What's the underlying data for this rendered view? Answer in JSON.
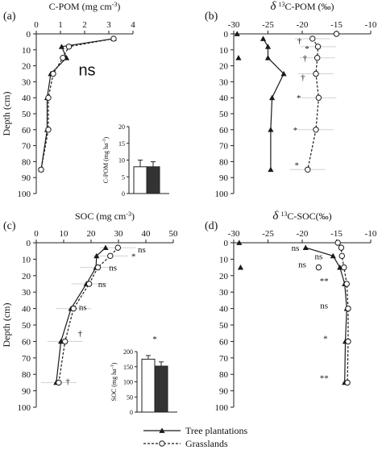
{
  "figure": {
    "legend": {
      "tree_label": "Tree plantations",
      "grass_label": "Grasslands",
      "position": "bottom-center"
    },
    "colors": {
      "tree": "#1a1a1a",
      "grass": "#1a1a1a",
      "inset_tree": "#ffffff",
      "inset_grass": "#333333",
      "errorbar": "#cccccc"
    }
  },
  "chart_data": [
    {
      "id": "a",
      "type": "line",
      "panel_label": "(a)",
      "title": "C-POM (mg cm",
      "title_sup": "-3",
      "title_end": ")",
      "ylabel": "Depth (cm)",
      "xlim": [
        0,
        4
      ],
      "xticks": [
        0,
        1,
        2,
        3,
        4
      ],
      "ylim": [
        0,
        100
      ],
      "yticks": [
        0,
        10,
        20,
        30,
        40,
        50,
        60,
        70,
        80,
        90,
        100
      ],
      "x_axis": "top",
      "y_inverted": true,
      "series": [
        {
          "name": "Tree plantations",
          "style": "solid",
          "marker": "triangle",
          "points": [
            [
              3.2,
              3
            ],
            [
              1.05,
              8
            ],
            [
              1.25,
              15
            ],
            [
              0.6,
              25
            ],
            [
              0.45,
              40
            ],
            [
              0.45,
              60
            ],
            [
              0.2,
              85
            ]
          ]
        },
        {
          "name": "Grasslands",
          "style": "dashed",
          "marker": "circle",
          "points": [
            [
              3.2,
              3
            ],
            [
              1.35,
              8
            ],
            [
              1.1,
              15
            ],
            [
              0.7,
              25
            ],
            [
              0.5,
              40
            ],
            [
              0.5,
              60
            ],
            [
              0.2,
              85
            ]
          ]
        }
      ],
      "annotations": [
        {
          "text": "ns",
          "depth": 24,
          "x": 2.1
        }
      ],
      "inset": {
        "ylabel": "C-POM (mg ha",
        "ylabel_sup": "-1",
        "ylabel_end": ")",
        "yticks": [
          0,
          5,
          10,
          15,
          20
        ],
        "ylim": [
          0,
          20
        ],
        "values": [
          8,
          8
        ],
        "errors": [
          2,
          1.5
        ]
      }
    },
    {
      "id": "b",
      "type": "line",
      "panel_label": "(b)",
      "title_delta": "δ",
      "title_sup": "13",
      "title_rest": "C-POM (‰)",
      "xlim": [
        -30,
        -10
      ],
      "xticks": [
        -30,
        -25,
        -20,
        -15,
        -10
      ],
      "ylim": [
        0,
        100
      ],
      "yticks": [
        0,
        10,
        20,
        30,
        40,
        50,
        60,
        70,
        80,
        90,
        100
      ],
      "x_axis": "top",
      "y_inverted": true,
      "series": [
        {
          "name": "Tree plantations",
          "style": "solid",
          "marker": "triangle",
          "points": [
            [
              -25.7,
              3
            ],
            [
              -25.0,
              8
            ],
            [
              -25.0,
              15
            ],
            [
              -22.7,
              25
            ],
            [
              -24.4,
              40
            ],
            [
              -24.6,
              60
            ],
            [
              -24.6,
              85
            ]
          ]
        },
        {
          "name": "Grasslands",
          "style": "dashed",
          "marker": "circle",
          "points": [
            [
              -18.5,
              3
            ],
            [
              -17.7,
              8
            ],
            [
              -17.8,
              15
            ],
            [
              -18.0,
              25
            ],
            [
              -17.6,
              40
            ],
            [
              -18.0,
              60
            ],
            [
              -19.2,
              85
            ]
          ]
        }
      ],
      "extra_points": [
        {
          "marker": "triangle",
          "x": -29.5,
          "depth": 0
        },
        {
          "marker": "triangle",
          "x": -29.3,
          "depth": 15
        },
        {
          "marker": "circle",
          "x": -15.0,
          "depth": 0
        }
      ],
      "annotations": [
        {
          "text": "†",
          "depth": 4,
          "x": -20.4
        },
        {
          "text": "*",
          "depth": 9,
          "x": -19.3
        },
        {
          "text": "†",
          "depth": 15,
          "x": -19.6
        },
        {
          "text": "†",
          "depth": 27,
          "x": -19.9
        },
        {
          "text": "*",
          "depth": 40,
          "x": -20.5
        },
        {
          "text": "*",
          "depth": 60,
          "x": -21.0
        },
        {
          "text": "*",
          "depth": 82,
          "x": -20.8
        }
      ]
    },
    {
      "id": "c",
      "type": "line",
      "panel_label": "(c)",
      "title": "SOC (mg cm",
      "title_sup": "-3",
      "title_end": ")",
      "ylabel": "Depth (cm)",
      "xlim": [
        0,
        50
      ],
      "xticks": [
        0,
        10,
        20,
        30,
        40,
        50
      ],
      "ylim": [
        0,
        100
      ],
      "yticks": [
        0,
        10,
        20,
        30,
        40,
        50,
        60,
        70,
        80,
        90,
        100
      ],
      "x_axis": "top",
      "y_inverted": true,
      "series": [
        {
          "name": "Tree plantations",
          "style": "solid",
          "marker": "triangle",
          "points": [
            [
              25.3,
              3
            ],
            [
              22.0,
              8
            ],
            [
              21.8,
              15
            ],
            [
              18.3,
              25
            ],
            [
              12.7,
              40
            ],
            [
              9.0,
              60
            ],
            [
              7.3,
              85
            ]
          ]
        },
        {
          "name": "Grasslands",
          "style": "dashed",
          "marker": "circle",
          "points": [
            [
              29.8,
              3
            ],
            [
              27.0,
              8
            ],
            [
              22.5,
              15
            ],
            [
              19.3,
              25
            ],
            [
              13.6,
              40
            ],
            [
              10.5,
              60
            ],
            [
              8.2,
              85
            ]
          ]
        }
      ],
      "annotations": [
        {
          "text": "*",
          "depth": 8,
          "x": 35.5
        },
        {
          "text": "ns",
          "depth": 4,
          "x": 38.5
        },
        {
          "text": "ns",
          "depth": 15,
          "x": 28.0
        },
        {
          "text": "ns",
          "depth": 25,
          "x": 24.0
        },
        {
          "text": "ns",
          "depth": 39,
          "x": 17.0
        },
        {
          "text": "†",
          "depth": 55,
          "x": 16.0
        },
        {
          "text": "†",
          "depth": 84,
          "x": 11.5
        }
      ],
      "inset": {
        "ylabel": "SOC (mg ha",
        "ylabel_sup": "-1",
        "ylabel_end": ")",
        "yticks": [
          0,
          50,
          100,
          150,
          200
        ],
        "ylim": [
          0,
          200
        ],
        "values": [
          175,
          152
        ],
        "errors": [
          12,
          14
        ],
        "sig": "*"
      }
    },
    {
      "id": "d",
      "type": "line",
      "panel_label": "(d)",
      "title_delta": "δ",
      "title_sup": "13",
      "title_rest": "C-SOC(‰)",
      "xlim": [
        -30,
        -10
      ],
      "xticks": [
        -30,
        -25,
        -20,
        -15,
        -10
      ],
      "ylim": [
        0,
        100
      ],
      "yticks": [
        0,
        10,
        20,
        30,
        40,
        50,
        60,
        70,
        80,
        90,
        100
      ],
      "x_axis": "top",
      "y_inverted": true,
      "series": [
        {
          "name": "Tree plantations",
          "style": "solid",
          "marker": "triangle",
          "points": [
            [
              -19.5,
              3
            ],
            [
              -15.5,
              8
            ],
            [
              -14.5,
              15
            ],
            [
              -13.8,
              25
            ],
            [
              -13.5,
              40
            ],
            [
              -13.7,
              60
            ],
            [
              -13.8,
              85
            ]
          ]
        },
        {
          "name": "Grasslands",
          "style": "dashed",
          "marker": "circle",
          "points": [
            [
              -14.8,
              0
            ],
            [
              -14.3,
              3
            ],
            [
              -14.2,
              8
            ],
            [
              -13.9,
              15
            ],
            [
              -13.5,
              25
            ],
            [
              -13.3,
              40
            ],
            [
              -13.3,
              60
            ],
            [
              -13.4,
              85
            ]
          ]
        }
      ],
      "extra_points": [
        {
          "marker": "triangle",
          "x": -29.2,
          "depth": 0
        },
        {
          "marker": "triangle",
          "x": -29.0,
          "depth": 15
        },
        {
          "marker": "circle",
          "x": -17.6,
          "depth": 15
        }
      ],
      "annotations": [
        {
          "text": "ns",
          "depth": 3,
          "x": -21.0
        },
        {
          "text": "ns",
          "depth": 8,
          "x": -17.6
        },
        {
          "text": "ns",
          "depth": 13,
          "x": -20.0
        },
        {
          "text": "**",
          "depth": 23,
          "x": -16.8
        },
        {
          "text": "ns",
          "depth": 38,
          "x": -16.8
        },
        {
          "text": "*",
          "depth": 58,
          "x": -16.6
        },
        {
          "text": "**",
          "depth": 82,
          "x": -16.8
        }
      ]
    }
  ]
}
